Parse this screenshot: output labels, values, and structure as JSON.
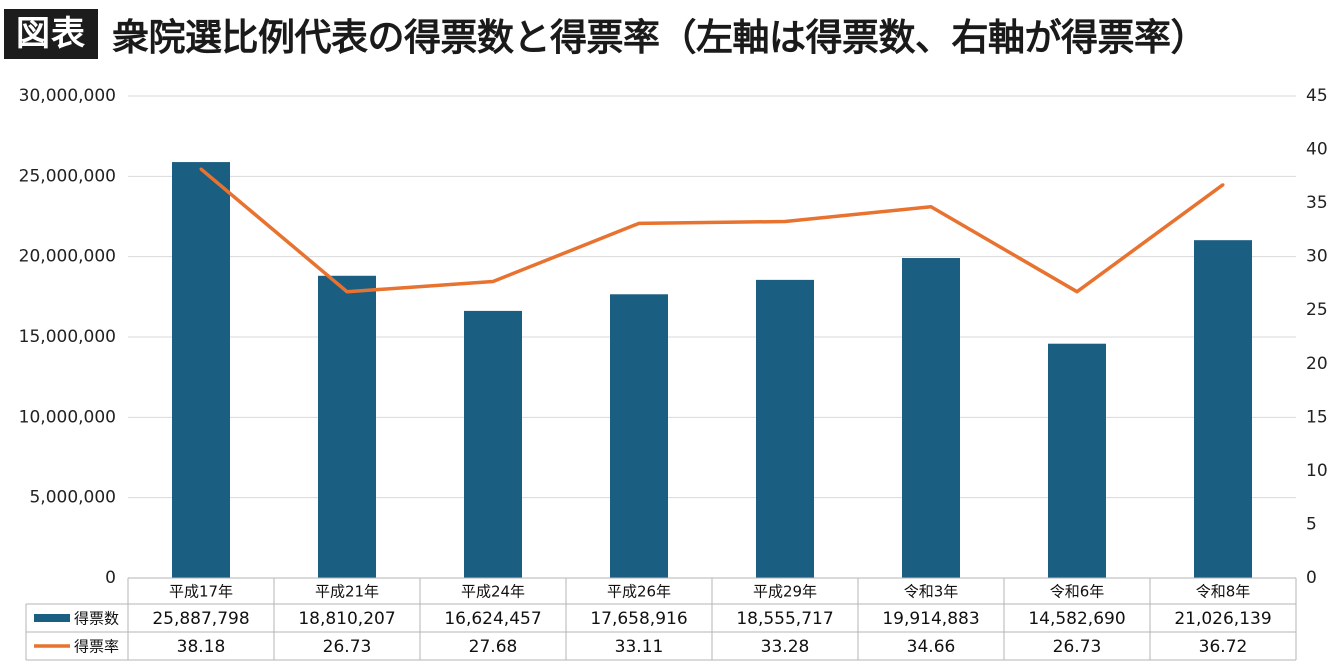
{
  "title": {
    "badge": "図表",
    "text": "衆院選比例代表の得票数と得票率（左軸は得票数、右軸が得票率）"
  },
  "colors": {
    "bar": "#1a5e82",
    "line": "#e8722f",
    "grid": "#d9d9d9"
  },
  "chart_data": {
    "type": "bar",
    "title": "衆院選比例代表の得票数と得票率（左軸は得票数、右軸が得票率）",
    "categories": [
      "平成17年",
      "平成21年",
      "平成24年",
      "平成26年",
      "平成29年",
      "令和3年",
      "令和6年",
      "令和8年"
    ],
    "left_axis": {
      "ylim": [
        0,
        30000000
      ],
      "ticks": [
        "0",
        "5,000,000",
        "10,000,000",
        "15,000,000",
        "20,000,000",
        "25,000,000",
        "30,000,000"
      ],
      "tick_values": [
        0,
        5000000,
        10000000,
        15000000,
        20000000,
        25000000,
        30000000
      ]
    },
    "right_axis": {
      "ylim": [
        0,
        45
      ],
      "ticks": [
        "0",
        "5",
        "10",
        "15",
        "20",
        "25",
        "30",
        "35",
        "40",
        "45"
      ],
      "tick_values": [
        0,
        5,
        10,
        15,
        20,
        25,
        30,
        35,
        40,
        45
      ]
    },
    "grid": true,
    "legend": "table-bottom",
    "series": [
      {
        "name": "得票数",
        "type": "bar",
        "axis": "left",
        "values": [
          25887798,
          18810207,
          16624457,
          17658916,
          18555717,
          19914883,
          14582690,
          21026139
        ],
        "labels": [
          "25,887,798",
          "18,810,207",
          "16,624,457",
          "17,658,916",
          "18,555,717",
          "19,914,883",
          "14,582,690",
          "21,026,139"
        ]
      },
      {
        "name": "得票率",
        "type": "line",
        "axis": "right",
        "values": [
          38.18,
          26.73,
          27.68,
          33.11,
          33.28,
          34.66,
          26.73,
          36.72
        ],
        "labels": [
          "38.18",
          "26.73",
          "27.68",
          "33.11",
          "33.28",
          "34.66",
          "26.73",
          "36.72"
        ]
      }
    ]
  }
}
